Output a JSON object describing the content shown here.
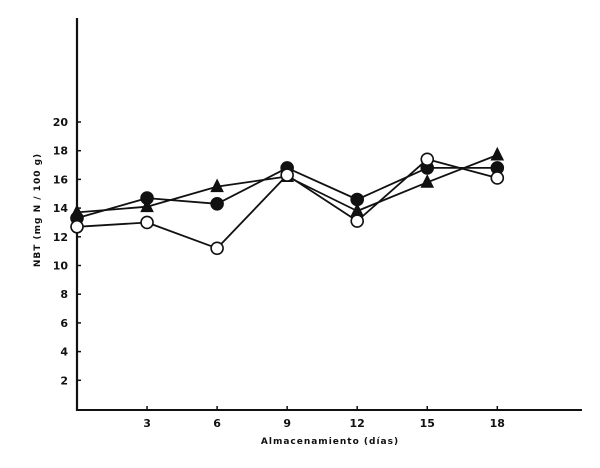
{
  "chart_data": {
    "type": "line",
    "title": "",
    "xlabel": "Almacenamiento (días)",
    "ylabel": "NBT (mg N / 100 g)",
    "x": [
      0,
      3,
      6,
      9,
      12,
      15,
      18
    ],
    "x_tick_labels": [
      "3",
      "6",
      "9",
      "12",
      "15",
      "18"
    ],
    "y_tick_labels": [
      "2",
      "4",
      "6",
      "8",
      "10",
      "12",
      "14",
      "16",
      "18",
      "20"
    ],
    "xlim": [
      0,
      21.7
    ],
    "ylim": [
      0,
      27.5
    ],
    "grid": false,
    "legend": "none",
    "series": [
      {
        "name": "triangle-filled",
        "marker": "triangle",
        "fill": "#111111",
        "values": [
          13.7,
          14.1,
          15.5,
          16.2,
          13.8,
          15.8,
          17.7
        ]
      },
      {
        "name": "circle-filled",
        "marker": "circle",
        "fill": "#111111",
        "values": [
          13.3,
          14.7,
          14.3,
          16.8,
          14.6,
          16.8,
          16.8
        ]
      },
      {
        "name": "circle-open",
        "marker": "circle",
        "fill": "#ffffff",
        "values": [
          12.7,
          13.0,
          11.2,
          16.3,
          13.1,
          17.4,
          16.1
        ]
      }
    ]
  },
  "colors": {
    "ink": "#111111",
    "background": "#ffffff"
  }
}
